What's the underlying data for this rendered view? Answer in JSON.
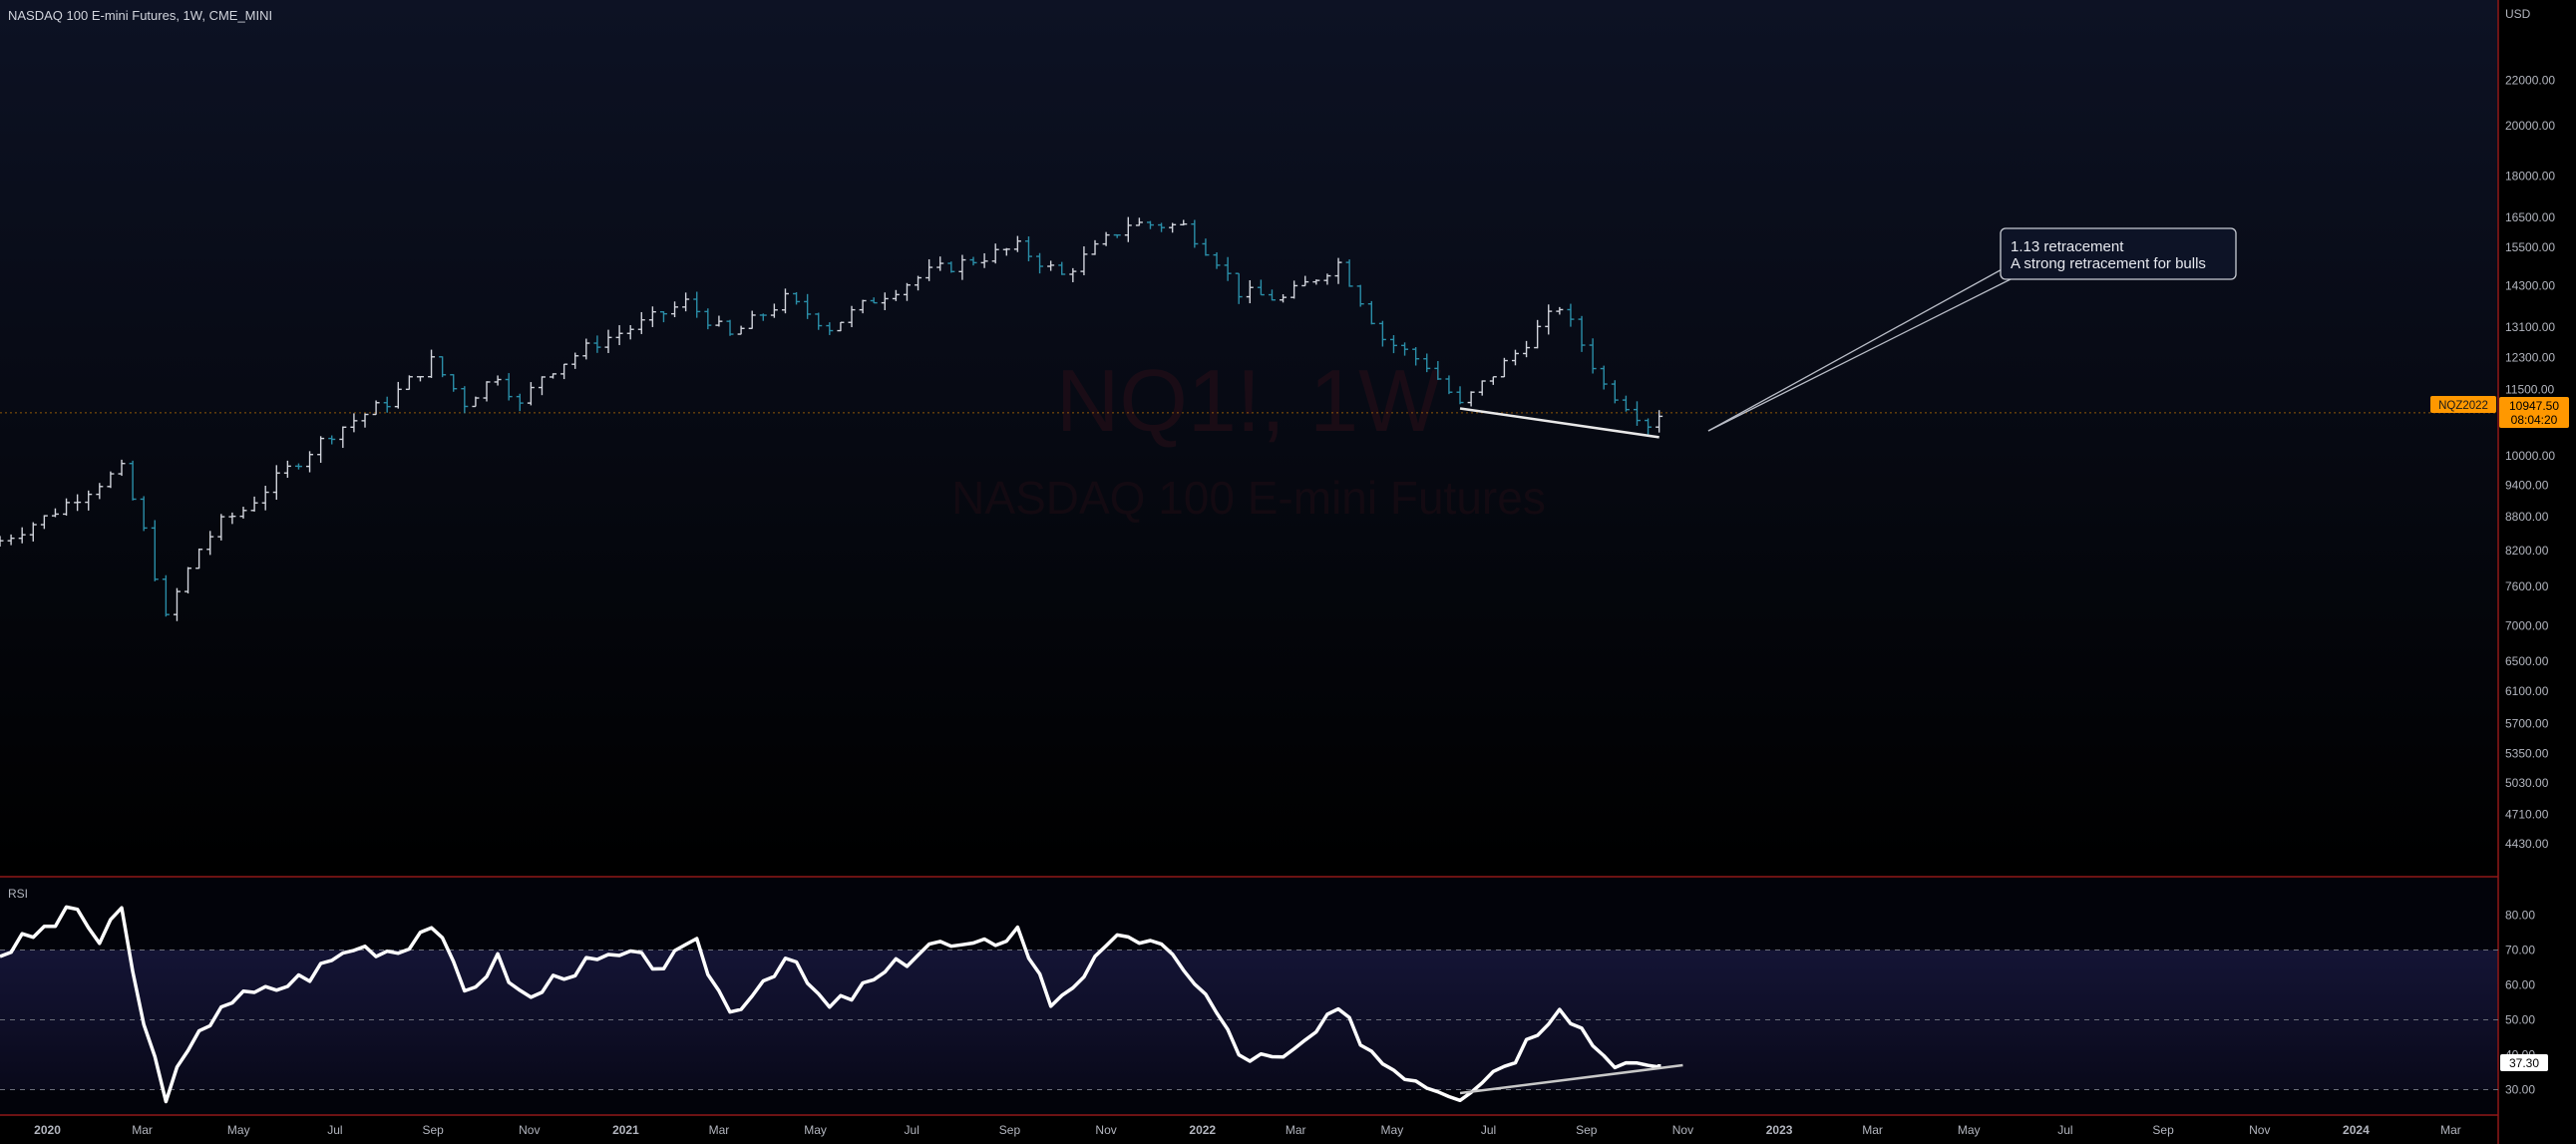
{
  "symbol_title": "NASDAQ 100 E-mini Futures, 1W, CME_MINI",
  "watermark": {
    "symbol": "NQ1!, 1W",
    "description": "NASDAQ 100 E-mini Futures"
  },
  "price_axis": {
    "currency": "USD",
    "ticks": [
      "22000.00",
      "20000.00",
      "18000.00",
      "16500.00",
      "15500.00",
      "14300.00",
      "13100.00",
      "12300.00",
      "11500.00",
      "10000.00",
      "9400.00",
      "8800.00",
      "8200.00",
      "7600.00",
      "7000.00",
      "6500.00",
      "6100.00",
      "5700.00",
      "5350.00",
      "5030.00",
      "4710.00",
      "4430.00"
    ]
  },
  "last_price": {
    "contract": "NQZ2022",
    "price": "10947.50",
    "countdown": "08:04:20"
  },
  "time_axis": {
    "labels": [
      "2020",
      "Mar",
      "May",
      "Jul",
      "Sep",
      "Nov",
      "2021",
      "Mar",
      "May",
      "Jul",
      "Sep",
      "Nov",
      "2022",
      "Mar",
      "May",
      "Jul",
      "Sep",
      "Nov",
      "2023",
      "Mar",
      "May",
      "Jul",
      "Sep",
      "Nov",
      "2024",
      "Mar"
    ],
    "bold": [
      "2020",
      "2021",
      "2022",
      "2023",
      "2024"
    ]
  },
  "annotation": {
    "line1": "1.13 retracement",
    "line2": "A strong retracement for bulls"
  },
  "rsi_panel": {
    "label": "RSI",
    "current": "37.30",
    "ticks": [
      "80.00",
      "70.00",
      "60.00",
      "50.00",
      "40.00",
      "30.00"
    ]
  },
  "colors": {
    "up": "#d1d4dc",
    "down": "#2a8ea8",
    "rsi": "#ffffff",
    "last_price": "#ff9800",
    "separator": "#b71c1c"
  },
  "chart_data": {
    "type": "ohlc",
    "scale": "log",
    "interval": "1W",
    "y_range": [
      4300,
      22500
    ],
    "x_range": [
      "2019-12-02",
      "2024-03-31"
    ],
    "closes": [
      {
        "date": "2019-12-02",
        "close": 8370
      },
      {
        "date": "2019-12-30",
        "close": 8780
      },
      {
        "date": "2020-02-03",
        "close": 9460
      },
      {
        "date": "2020-02-17",
        "close": 9710
      },
      {
        "date": "2020-03-02",
        "close": 8530
      },
      {
        "date": "2020-03-16",
        "close": 7090
      },
      {
        "date": "2020-03-23",
        "close": 7500
      },
      {
        "date": "2020-04-06",
        "close": 8230
      },
      {
        "date": "2020-04-20",
        "close": 8690
      },
      {
        "date": "2020-05-04",
        "close": 8930
      },
      {
        "date": "2020-06-01",
        "close": 9720
      },
      {
        "date": "2020-06-29",
        "close": 10500
      },
      {
        "date": "2020-08-03",
        "close": 11200
      },
      {
        "date": "2020-08-31",
        "close": 12200
      },
      {
        "date": "2020-09-21",
        "close": 11180
      },
      {
        "date": "2020-10-12",
        "close": 11870
      },
      {
        "date": "2020-10-26",
        "close": 11100
      },
      {
        "date": "2020-11-09",
        "close": 11850
      },
      {
        "date": "2020-12-14",
        "close": 12700
      },
      {
        "date": "2021-01-11",
        "close": 13200
      },
      {
        "date": "2021-02-08",
        "close": 13800
      },
      {
        "date": "2021-03-08",
        "close": 12850
      },
      {
        "date": "2021-04-12",
        "close": 13900
      },
      {
        "date": "2021-05-10",
        "close": 13100
      },
      {
        "date": "2021-06-07",
        "close": 13900
      },
      {
        "date": "2021-07-12",
        "close": 14700
      },
      {
        "date": "2021-08-09",
        "close": 15100
      },
      {
        "date": "2021-09-06",
        "close": 15500
      },
      {
        "date": "2021-10-04",
        "close": 14600
      },
      {
        "date": "2021-11-15",
        "close": 16300
      },
      {
        "date": "2021-12-20",
        "close": 16200
      },
      {
        "date": "2022-01-10",
        "close": 15100
      },
      {
        "date": "2022-01-24",
        "close": 14100
      },
      {
        "date": "2022-02-21",
        "close": 13900
      },
      {
        "date": "2022-03-28",
        "close": 15000
      },
      {
        "date": "2022-04-25",
        "close": 12800
      },
      {
        "date": "2022-05-23",
        "close": 12100
      },
      {
        "date": "2022-06-13",
        "close": 11100
      },
      {
        "date": "2022-07-18",
        "close": 12400
      },
      {
        "date": "2022-08-15",
        "close": 13700
      },
      {
        "date": "2022-09-12",
        "close": 11600
      },
      {
        "date": "2022-10-10",
        "close": 10700
      },
      {
        "date": "2022-10-17",
        "close": 10947.5
      }
    ],
    "trendline_price": [
      {
        "date": "2022-06-13",
        "price": 11050
      },
      {
        "date": "2022-10-17",
        "price": 10400
      }
    ],
    "rsi": {
      "y_range": [
        25,
        85
      ],
      "levels": [
        70,
        50,
        30
      ],
      "values": [
        {
          "date": "2019-12-02",
          "v": 69
        },
        {
          "date": "2019-12-30",
          "v": 76
        },
        {
          "date": "2020-01-20",
          "v": 82
        },
        {
          "date": "2020-02-03",
          "v": 72
        },
        {
          "date": "2020-02-17",
          "v": 81
        },
        {
          "date": "2020-03-02",
          "v": 48
        },
        {
          "date": "2020-03-16",
          "v": 29
        },
        {
          "date": "2020-03-30",
          "v": 40
        },
        {
          "date": "2020-04-20",
          "v": 55
        },
        {
          "date": "2020-05-18",
          "v": 58
        },
        {
          "date": "2020-06-15",
          "v": 63
        },
        {
          "date": "2020-07-13",
          "v": 71
        },
        {
          "date": "2020-08-10",
          "v": 70
        },
        {
          "date": "2020-08-31",
          "v": 78
        },
        {
          "date": "2020-09-21",
          "v": 58
        },
        {
          "date": "2020-10-12",
          "v": 67
        },
        {
          "date": "2020-10-30",
          "v": 55
        },
        {
          "date": "2020-11-23",
          "v": 64
        },
        {
          "date": "2020-12-28",
          "v": 68
        },
        {
          "date": "2021-01-25",
          "v": 66
        },
        {
          "date": "2021-02-15",
          "v": 71
        },
        {
          "date": "2021-03-08",
          "v": 52
        },
        {
          "date": "2021-04-12",
          "v": 68
        },
        {
          "date": "2021-05-10",
          "v": 53
        },
        {
          "date": "2021-06-14",
          "v": 63
        },
        {
          "date": "2021-07-12",
          "v": 72
        },
        {
          "date": "2021-08-09",
          "v": 70
        },
        {
          "date": "2021-09-06",
          "v": 76
        },
        {
          "date": "2021-09-27",
          "v": 55
        },
        {
          "date": "2021-11-15",
          "v": 75
        },
        {
          "date": "2021-12-20",
          "v": 66
        },
        {
          "date": "2022-01-10",
          "v": 52
        },
        {
          "date": "2022-01-24",
          "v": 40
        },
        {
          "date": "2022-02-21",
          "v": 38
        },
        {
          "date": "2022-03-28",
          "v": 52
        },
        {
          "date": "2022-04-25",
          "v": 38
        },
        {
          "date": "2022-05-23",
          "v": 32
        },
        {
          "date": "2022-06-13",
          "v": 29
        },
        {
          "date": "2022-07-18",
          "v": 40
        },
        {
          "date": "2022-08-15",
          "v": 55
        },
        {
          "date": "2022-09-12",
          "v": 40
        },
        {
          "date": "2022-10-10",
          "v": 35
        },
        {
          "date": "2022-10-17",
          "v": 37.3
        }
      ],
      "trendline": [
        {
          "date": "2022-06-13",
          "v": 29
        },
        {
          "date": "2022-11-01",
          "v": 37
        }
      ]
    }
  }
}
